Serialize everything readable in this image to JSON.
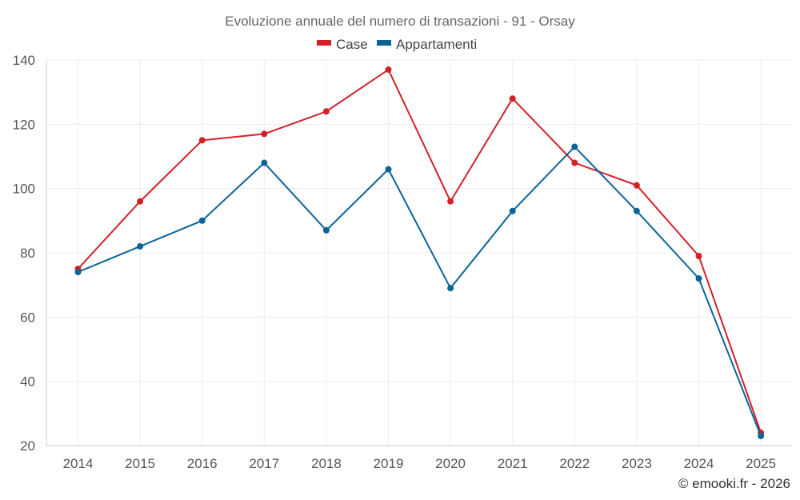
{
  "chart_data": {
    "type": "line",
    "title": "Evoluzione annuale del numero di transazioni - 91 - Orsay",
    "categories": [
      "2014",
      "2015",
      "2016",
      "2017",
      "2018",
      "2019",
      "2020",
      "2021",
      "2022",
      "2023",
      "2024",
      "2025"
    ],
    "series": [
      {
        "name": "Case",
        "color": "#d32027",
        "values": [
          75,
          96,
          115,
          117,
          124,
          137,
          96,
          128,
          108,
          101,
          79,
          24
        ]
      },
      {
        "name": "Appartamenti",
        "color": "#0b6399",
        "values": [
          74,
          82,
          90,
          108,
          87,
          106,
          69,
          93,
          113,
          93,
          72,
          23
        ]
      }
    ],
    "ylim": [
      20,
      140
    ],
    "yticks": [
      20,
      40,
      60,
      80,
      100,
      120,
      140
    ],
    "xlabel": "",
    "ylabel": "",
    "grid": true,
    "legend": "top-center"
  },
  "credit": "© emooki.fr - 2026"
}
